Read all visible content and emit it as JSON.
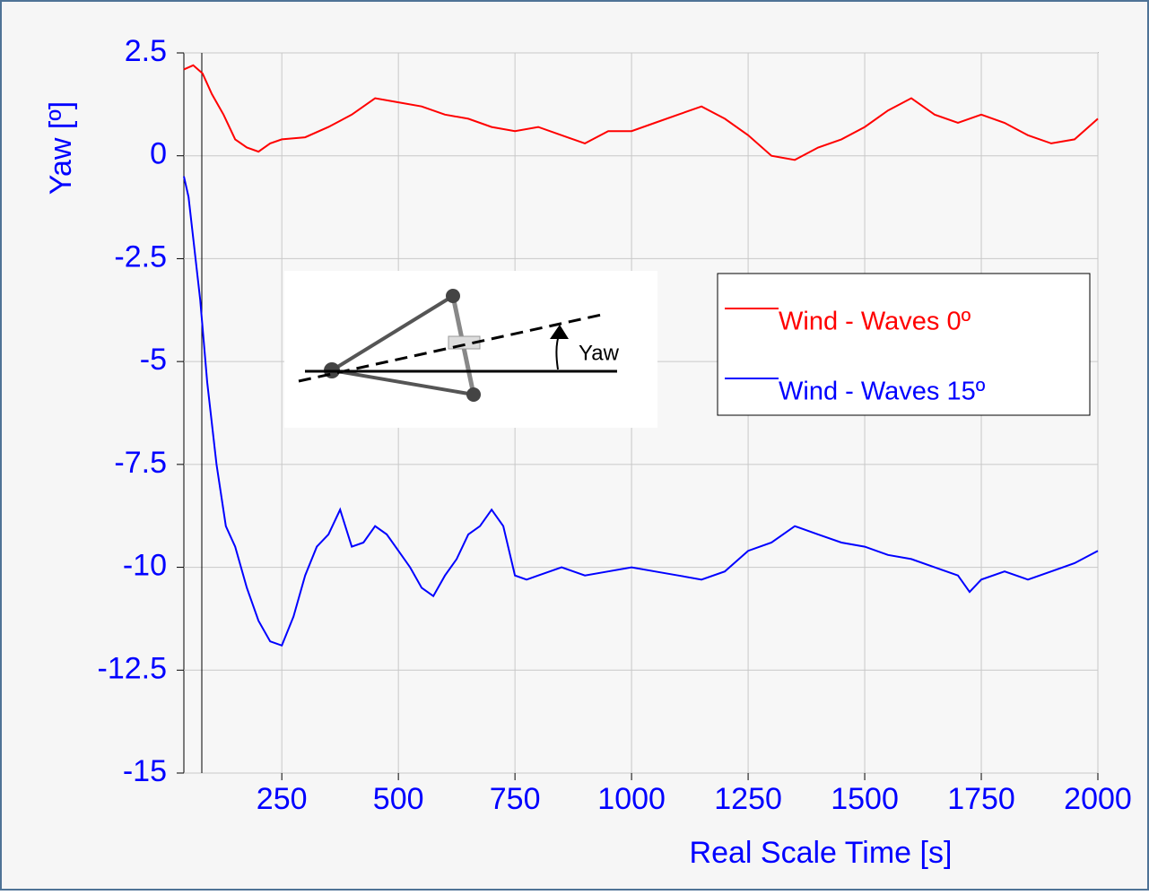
{
  "chart_data": {
    "type": "line",
    "xlabel": "Real Scale Time [s]",
    "ylabel": "Yaw [º]",
    "xlim": [
      40,
      2000
    ],
    "xticks": [
      250,
      500,
      750,
      1000,
      1250,
      1500,
      1750,
      2000
    ],
    "ylim": [
      -15,
      2.5
    ],
    "yticks": [
      2.5,
      0,
      -2.5,
      -5,
      -7.5,
      -10,
      -12.5,
      -15
    ],
    "grid": true,
    "legend": "right",
    "inset_label": "Yaw",
    "series": [
      {
        "name": "Wind - Waves 0º",
        "color": "#ff0000",
        "x": [
          40,
          60,
          80,
          100,
          125,
          150,
          175,
          200,
          225,
          250,
          300,
          350,
          400,
          450,
          500,
          550,
          600,
          650,
          700,
          750,
          800,
          850,
          900,
          950,
          1000,
          1050,
          1100,
          1150,
          1200,
          1250,
          1300,
          1350,
          1400,
          1450,
          1500,
          1550,
          1600,
          1650,
          1700,
          1750,
          1800,
          1850,
          1900,
          1950,
          2000
        ],
        "values": [
          2.1,
          2.2,
          2.0,
          1.5,
          1.0,
          0.4,
          0.2,
          0.1,
          0.3,
          0.4,
          0.45,
          0.7,
          1.0,
          1.4,
          1.3,
          1.2,
          1.0,
          0.9,
          0.7,
          0.6,
          0.7,
          0.5,
          0.3,
          0.6,
          0.6,
          0.8,
          1.0,
          1.2,
          0.9,
          0.5,
          0.0,
          -0.1,
          0.2,
          0.4,
          0.7,
          1.1,
          1.4,
          1.0,
          0.8,
          1.0,
          0.8,
          0.5,
          0.3,
          0.4,
          0.9
        ]
      },
      {
        "name": "Wind - Waves 15º",
        "color": "#0000ff",
        "x": [
          40,
          50,
          60,
          75,
          90,
          110,
          130,
          150,
          175,
          200,
          225,
          250,
          275,
          300,
          325,
          350,
          375,
          400,
          425,
          450,
          475,
          500,
          525,
          550,
          575,
          600,
          625,
          650,
          675,
          700,
          725,
          750,
          775,
          800,
          850,
          900,
          950,
          1000,
          1050,
          1100,
          1150,
          1200,
          1250,
          1300,
          1350,
          1400,
          1450,
          1500,
          1550,
          1600,
          1650,
          1700,
          1725,
          1750,
          1800,
          1850,
          1900,
          1950,
          2000
        ],
        "values": [
          -0.5,
          -1.0,
          -2.0,
          -3.5,
          -5.5,
          -7.5,
          -9.0,
          -9.5,
          -10.5,
          -11.3,
          -11.8,
          -11.9,
          -11.2,
          -10.2,
          -9.5,
          -9.2,
          -8.6,
          -9.5,
          -9.4,
          -9.0,
          -9.2,
          -9.6,
          -10.0,
          -10.5,
          -10.7,
          -10.2,
          -9.8,
          -9.2,
          -9.0,
          -8.6,
          -9.0,
          -10.2,
          -10.3,
          -10.2,
          -10.0,
          -10.2,
          -10.1,
          -10.0,
          -10.1,
          -10.2,
          -10.3,
          -10.1,
          -9.6,
          -9.4,
          -9.0,
          -9.2,
          -9.4,
          -9.5,
          -9.7,
          -9.8,
          -10.0,
          -10.2,
          -10.6,
          -10.3,
          -10.1,
          -10.3,
          -10.1,
          -9.9,
          -9.6
        ]
      }
    ]
  }
}
